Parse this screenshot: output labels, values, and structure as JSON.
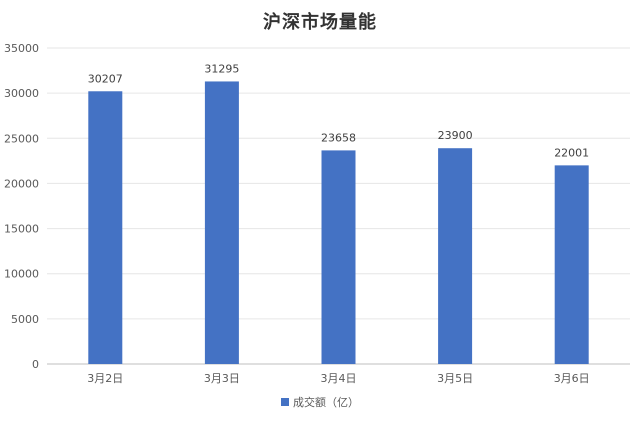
{
  "chart_data": {
    "type": "bar",
    "title": "沪深市场量能",
    "categories": [
      "3月2日",
      "3月3日",
      "3月4日",
      "3月5日",
      "3月6日"
    ],
    "series": [
      {
        "name": "成交额（亿）",
        "values": [
          30207,
          31295,
          23658,
          23900,
          22001
        ]
      }
    ],
    "ylim": [
      0,
      35000
    ],
    "yticks": [
      0,
      5000,
      10000,
      15000,
      20000,
      25000,
      30000,
      35000
    ],
    "xlabel": "",
    "ylabel": "",
    "grid": true,
    "legend_position": "bottom",
    "colors": {
      "bar": "#4472C4",
      "grid": "#E6E6E6",
      "axis_text": "#595959",
      "label_text": "#404040"
    }
  }
}
